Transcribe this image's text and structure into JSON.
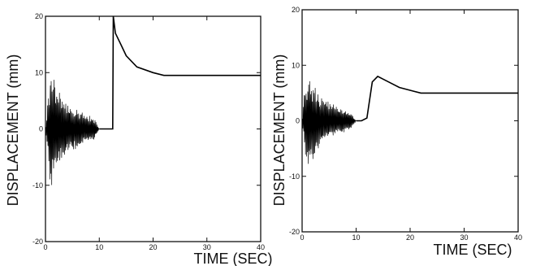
{
  "chart_data": [
    {
      "type": "line",
      "xlabel": "TIME (SEC)",
      "ylabel": "DISPLACEMENT (mm)",
      "xlim": [
        0,
        40
      ],
      "ylim": [
        -20,
        20
      ],
      "xticks": [
        "0",
        "10",
        "20",
        "30",
        "40"
      ],
      "yticks": [
        "-20",
        "-10",
        "0",
        "10",
        "20"
      ],
      "series": [
        {
          "x": [
            0,
            0.5,
            1,
            2,
            3,
            4,
            5,
            6,
            7,
            8,
            9,
            10,
            11,
            12,
            12.5,
            12.6,
            13,
            14,
            15,
            17,
            20,
            22,
            25,
            30,
            35,
            40
          ],
          "y": [
            0,
            6,
            11,
            8,
            6,
            5,
            4,
            3.5,
            3,
            2.5,
            2,
            0,
            0,
            0,
            0,
            20,
            17,
            15,
            13,
            11,
            10,
            9.5,
            9.5,
            9.5,
            9.5,
            9.5
          ]
        }
      ]
    },
    {
      "type": "line",
      "xlabel": "TIME (SEC)",
      "ylabel": "DISPLACEMENT (mm)",
      "xlim": [
        0,
        40
      ],
      "ylim": [
        -20,
        20
      ],
      "xticks": [
        "0",
        "10",
        "20",
        "30",
        "40"
      ],
      "yticks": [
        "-20",
        "-10",
        "0",
        "10",
        "20"
      ],
      "series": [
        {
          "x": [
            0,
            0.5,
            1,
            2,
            3,
            4,
            5,
            6,
            7,
            8,
            9,
            10,
            11,
            12,
            13,
            14,
            15,
            16,
            18,
            20,
            22,
            25,
            30,
            35,
            40
          ],
          "y": [
            0,
            6,
            9,
            7,
            5,
            4,
            3.5,
            3,
            2.5,
            2,
            1.5,
            0,
            0,
            0.5,
            7,
            8,
            7.5,
            7,
            6,
            5.5,
            5,
            5,
            5,
            5,
            5
          ]
        }
      ]
    }
  ]
}
